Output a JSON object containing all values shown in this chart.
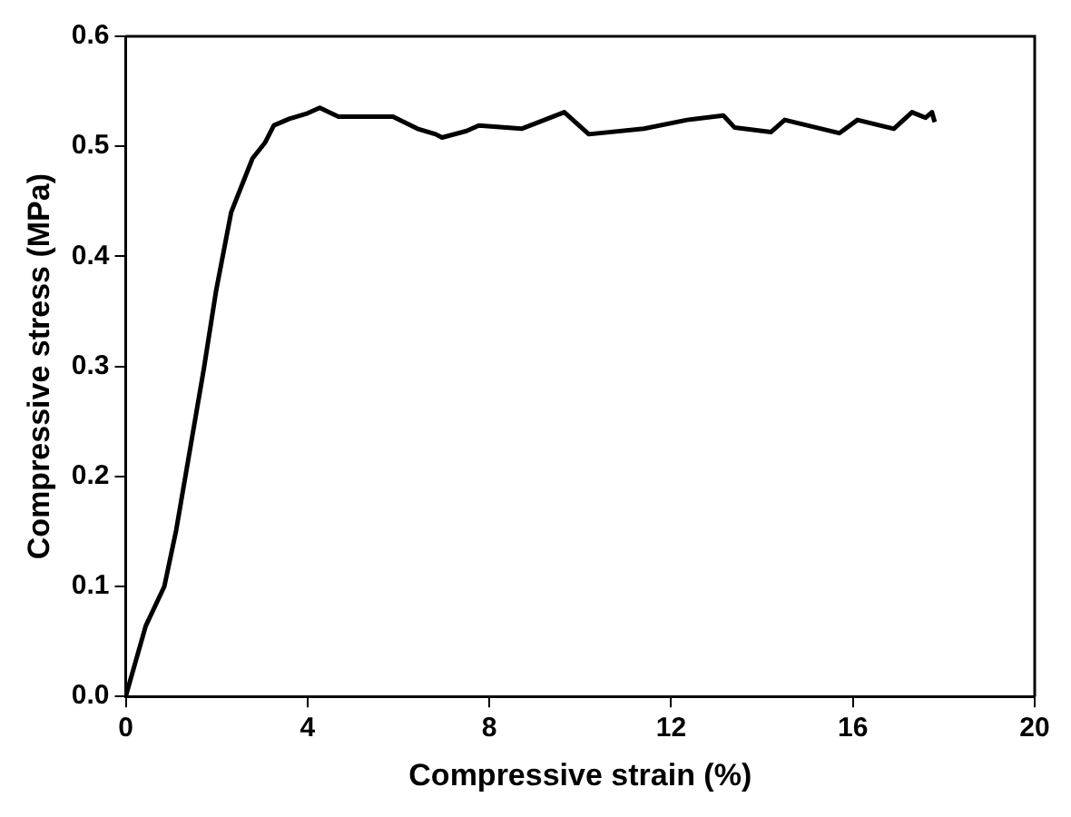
{
  "chart_data": {
    "type": "line",
    "xlabel": "Compressive strain (%)",
    "ylabel": "Compressive stress (MPa)",
    "xlim": [
      0,
      20
    ],
    "xticks": [
      0,
      4,
      8,
      12,
      16,
      20
    ],
    "ylim": [
      0,
      0.6
    ],
    "yticks": [
      {
        "value": 0,
        "label": "0.0"
      },
      0.1,
      0.2,
      0.3,
      0.4,
      0.5,
      0.6
    ],
    "grid": false,
    "legend": false,
    "marker": "none",
    "line_style": "solid",
    "series": [
      {
        "color": "#000000",
        "x": [
          0,
          0.44,
          0.85,
          1.11,
          1.45,
          1.72,
          1.99,
          2.32,
          2.79,
          3.06,
          3.26,
          3.6,
          4.0,
          4.27,
          4.68,
          5.48,
          5.88,
          6.42,
          6.82,
          6.96,
          7.5,
          7.77,
          8.71,
          9.65,
          10.19,
          11.4,
          12.35,
          13.15,
          13.4,
          14.2,
          14.5,
          15.7,
          16.1,
          16.9,
          17.3,
          17.6,
          17.74,
          17.8
        ],
        "values": [
          0,
          0.064,
          0.1,
          0.151,
          0.233,
          0.298,
          0.369,
          0.44,
          0.489,
          0.503,
          0.519,
          0.525,
          0.53,
          0.535,
          0.527,
          0.527,
          0.527,
          0.516,
          0.511,
          0.508,
          0.514,
          0.519,
          0.516,
          0.531,
          0.511,
          0.516,
          0.524,
          0.528,
          0.517,
          0.513,
          0.524,
          0.512,
          0.524,
          0.516,
          0.531,
          0.526,
          0.531,
          0.522
        ]
      }
    ]
  }
}
